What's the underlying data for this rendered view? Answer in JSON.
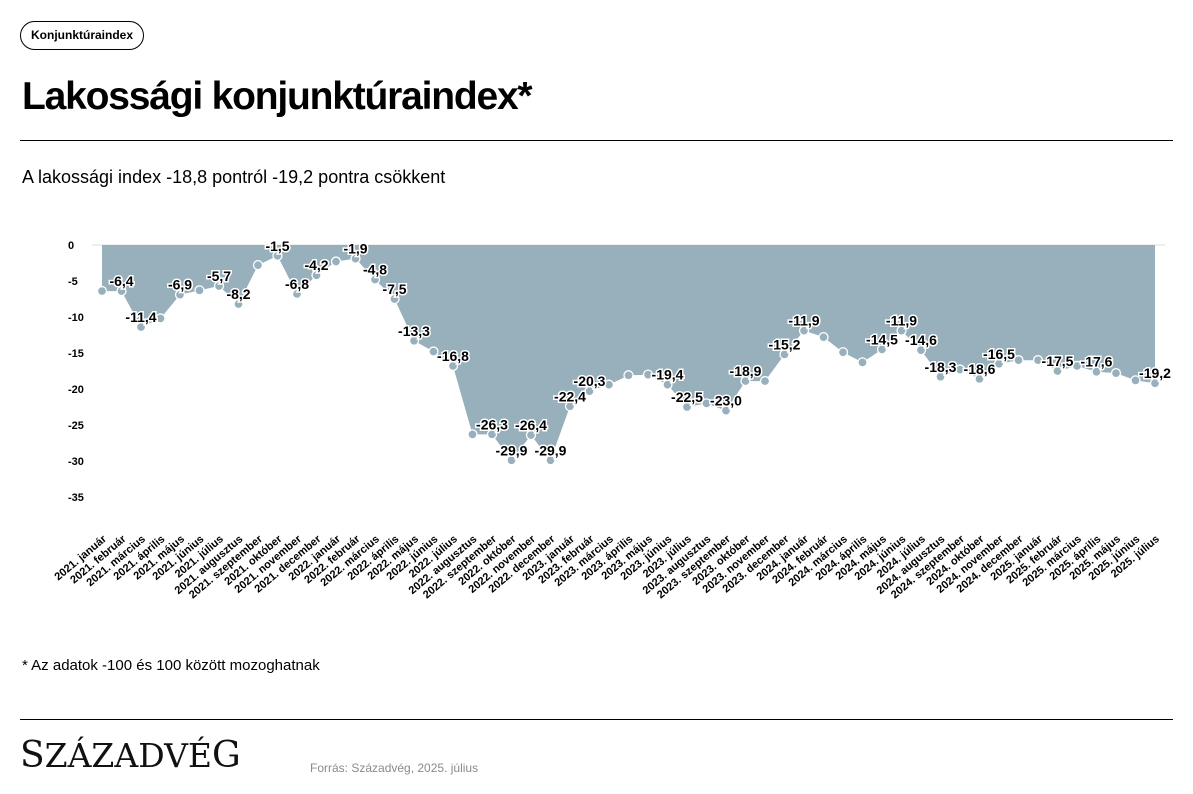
{
  "tag_label": "Konjunktúraindex",
  "title": "Lakossági konjunktúraindex*",
  "subtitle": "A lakossági index -18,8 pontról -19,2 pontra csökkent",
  "footnote": "* Az adatok -100 és 100 között mozoghatnak",
  "logo_text": "Századvég",
  "source": "Forrás: Századvég, 2025. július",
  "colors": {
    "area_fill": "#98afbc",
    "marker": "#98afbc",
    "marker_stroke": "#ffffff"
  },
  "chart_data": {
    "type": "area",
    "ylim": [
      -35,
      0
    ],
    "yticks": [
      0,
      -5,
      -10,
      -15,
      -20,
      -25,
      -30,
      -35
    ],
    "grid": false,
    "x": [
      "2021. január",
      "2021. február",
      "2021. március",
      "2021. április",
      "2021. május",
      "2021. június",
      "2021. július",
      "2021. augusztus",
      "2021. szeptember",
      "2021. október",
      "2021. november",
      "2021. december",
      "2022. január",
      "2022. február",
      "2022. március",
      "2022. április",
      "2022. május",
      "2022. június",
      "2022. július",
      "2022. augusztus",
      "2022. szeptember",
      "2022. október",
      "2022. november",
      "2022. december",
      "2023. január",
      "2023. február",
      "2023. március",
      "2023. április",
      "2023. május",
      "2023. június",
      "2023. július",
      "2023. augusztus",
      "2023. szeptember",
      "2023. október",
      "2023. november",
      "2023. december",
      "2024. január",
      "2024. február",
      "2024. március",
      "2024. április",
      "2024. május",
      "2024. június",
      "2024. július",
      "2024. augusztus",
      "2024. szeptember",
      "2024. október",
      "2024. november",
      "2024. december",
      "2025. január",
      "2025. február",
      "2025. március",
      "2025. április",
      "2025. május",
      "2025. június",
      "2025. július"
    ],
    "values": [
      -6.4,
      -6.4,
      -11.4,
      -10.2,
      -6.9,
      -6.3,
      -5.7,
      -8.2,
      -2.8,
      -1.5,
      -6.8,
      -4.2,
      -2.3,
      -1.9,
      -4.8,
      -7.5,
      -13.3,
      -14.8,
      -16.8,
      -26.3,
      -26.3,
      -29.9,
      -26.4,
      -29.9,
      -22.4,
      -20.3,
      -19.4,
      -18.1,
      -18.0,
      -19.4,
      -22.5,
      -22.0,
      -23.0,
      -18.9,
      -18.9,
      -15.2,
      -11.9,
      -12.8,
      -14.9,
      -16.3,
      -14.5,
      -11.9,
      -14.6,
      -18.3,
      -17.3,
      -18.6,
      -16.5,
      -16.0,
      -16.0,
      -17.5,
      -16.8,
      -17.6,
      -17.8,
      -18.8,
      -19.2
    ],
    "data_labels": [
      {
        "i": 1,
        "text": "-6,4"
      },
      {
        "i": 2,
        "text": "-11,4"
      },
      {
        "i": 4,
        "text": "-6,9"
      },
      {
        "i": 6,
        "text": "-5,7"
      },
      {
        "i": 7,
        "text": "-8,2"
      },
      {
        "i": 9,
        "text": "-1,5"
      },
      {
        "i": 10,
        "text": "-6,8"
      },
      {
        "i": 11,
        "text": "-4,2"
      },
      {
        "i": 13,
        "text": "-1,9"
      },
      {
        "i": 14,
        "text": "-4,8"
      },
      {
        "i": 15,
        "text": "-7,5"
      },
      {
        "i": 16,
        "text": "-13,3"
      },
      {
        "i": 18,
        "text": "-16,8"
      },
      {
        "i": 20,
        "text": "-26,3"
      },
      {
        "i": 21,
        "text": "-29,9"
      },
      {
        "i": 22,
        "text": "-26,4"
      },
      {
        "i": 23,
        "text": "-29,9"
      },
      {
        "i": 24,
        "text": "-22,4"
      },
      {
        "i": 25,
        "text": "-20,3"
      },
      {
        "i": 29,
        "text": "-19,4"
      },
      {
        "i": 30,
        "text": "-22,5"
      },
      {
        "i": 32,
        "text": "-23,0"
      },
      {
        "i": 33,
        "text": "-18,9"
      },
      {
        "i": 35,
        "text": "-15,2"
      },
      {
        "i": 36,
        "text": "-11,9"
      },
      {
        "i": 40,
        "text": "-14,5"
      },
      {
        "i": 41,
        "text": "-11,9"
      },
      {
        "i": 42,
        "text": "-14,6"
      },
      {
        "i": 43,
        "text": "-18,3"
      },
      {
        "i": 45,
        "text": "-18,6"
      },
      {
        "i": 46,
        "text": "-16,5"
      },
      {
        "i": 49,
        "text": "-17,5"
      },
      {
        "i": 51,
        "text": "-17,6"
      },
      {
        "i": 54,
        "text": "-19,2"
      }
    ]
  }
}
